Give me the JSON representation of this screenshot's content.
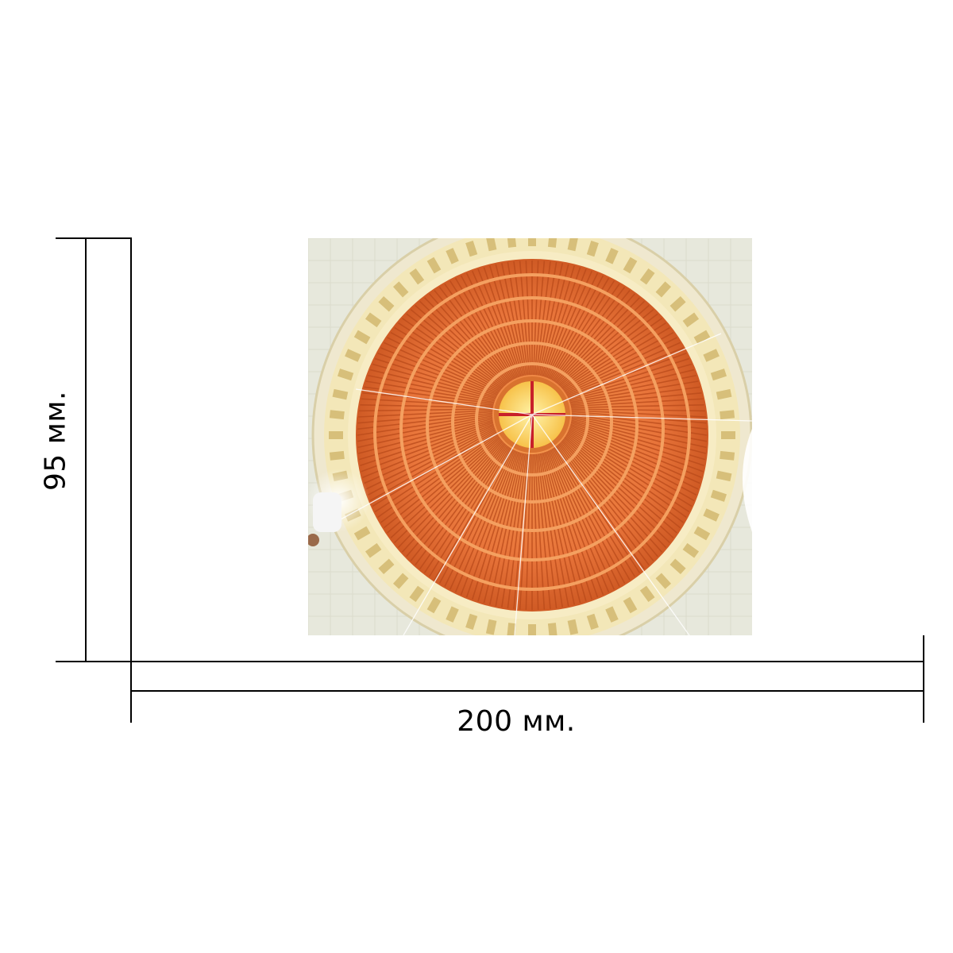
{
  "dimensions": {
    "width_label": "200 мм.",
    "height_label": "95 мм."
  },
  "photo": {
    "subject": "dome-ceiling-icon",
    "colors": {
      "wood": "#e8743a",
      "wood_dark": "#b94a1a",
      "stone": "#e9e8d8",
      "cross": "#c8202a",
      "oculus": "#f7c24a"
    }
  }
}
